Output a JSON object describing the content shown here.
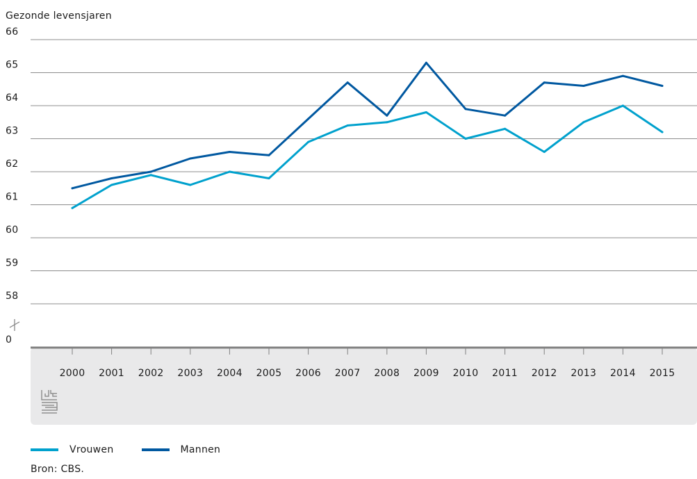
{
  "chart_data": {
    "type": "line",
    "ylabel": "Gezonde levensjaren",
    "y_ticks": [
      "66",
      "65",
      "64",
      "63",
      "62",
      "61",
      "60",
      "59",
      "58",
      "0"
    ],
    "ylim": [
      58,
      66
    ],
    "axis_break": true,
    "categories": [
      "2000",
      "2001",
      "2002",
      "2003",
      "2004",
      "2005",
      "2006",
      "2007",
      "2008",
      "2009",
      "2010",
      "2011",
      "2012",
      "2013",
      "2014",
      "2015"
    ],
    "series": [
      {
        "name": "Vrouwen",
        "color": "#00a1cd",
        "values": [
          60.9,
          61.6,
          61.9,
          61.6,
          62.0,
          61.8,
          62.9,
          63.4,
          63.5,
          63.8,
          63.0,
          63.3,
          62.6,
          63.5,
          64.0,
          63.2
        ]
      },
      {
        "name": "Mannen",
        "color": "#0058a0",
        "values": [
          61.5,
          61.8,
          62.0,
          62.4,
          62.6,
          62.5,
          63.6,
          64.7,
          63.7,
          65.3,
          63.9,
          63.7,
          64.7,
          64.6,
          64.9,
          64.6
        ]
      }
    ],
    "grid": true,
    "legend_position": "bottom-left"
  },
  "source": "Bron: CBS.",
  "icon": "cbs-logo-icon",
  "colors": {
    "gridline": "#8c8c8c",
    "axis_baseline": "#808080",
    "x_axis_panel": "#e9e9ea"
  }
}
